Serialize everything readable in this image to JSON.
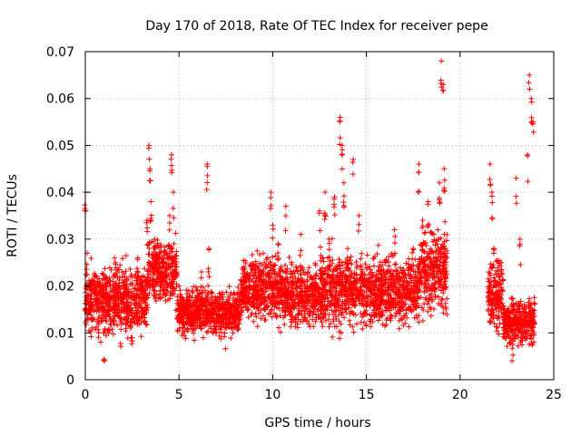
{
  "chart_data": {
    "type": "scatter",
    "title": "Day 170 of 2018, Rate Of TEC Index for receiver pepe",
    "xlabel": "GPS time / hours",
    "ylabel": "ROTI / TECUs",
    "xlim": [
      0,
      25
    ],
    "ylim": [
      0,
      0.07
    ],
    "x_ticks": [
      0,
      5,
      10,
      15,
      20,
      25
    ],
    "y_ticks": [
      0,
      0.01,
      0.02,
      0.03,
      0.04,
      0.05,
      0.06,
      0.07
    ],
    "x_tick_labels": [
      "0",
      "5",
      "10",
      "15",
      "20",
      "25"
    ],
    "y_tick_labels": [
      "0",
      "0.01",
      "0.02",
      "0.03",
      "0.04",
      "0.05",
      "0.06",
      "0.07"
    ],
    "grid": true,
    "marker": "+",
    "color": "#ff0000",
    "series": [
      {
        "name": "ROTI",
        "x": [
          0.0,
          0.1,
          0.2,
          0.3,
          0.5,
          0.7,
          1.0,
          1.3,
          1.6,
          1.9,
          2.2,
          2.5,
          2.8,
          3.1,
          3.3,
          3.4,
          3.45,
          3.5,
          3.7,
          4.0,
          4.3,
          4.5,
          4.6,
          4.7,
          5.0,
          5.4,
          5.8,
          6.2,
          6.5,
          6.6,
          7.0,
          7.5,
          8.0,
          8.5,
          9.0,
          9.5,
          9.9,
          10.0,
          10.3,
          10.7,
          11.0,
          11.5,
          12.0,
          12.5,
          12.8,
          13.0,
          13.3,
          13.6,
          13.7,
          13.8,
          14.0,
          14.3,
          14.6,
          14.9,
          15.0,
          15.3,
          15.7,
          16.0,
          16.5,
          17.0,
          17.5,
          17.8,
          18.0,
          18.3,
          18.6,
          18.9,
          19.0,
          19.1,
          19.15,
          19.2,
          21.6,
          21.7,
          21.8,
          22.0,
          22.2,
          22.5,
          22.8,
          23.0,
          23.2,
          23.4,
          23.6,
          23.7,
          23.8,
          23.9
        ],
        "y": [
          0.04,
          0.027,
          0.02,
          0.015,
          0.022,
          0.013,
          0.01,
          0.018,
          0.025,
          0.012,
          0.015,
          0.009,
          0.026,
          0.02,
          0.034,
          0.05,
          0.045,
          0.038,
          0.03,
          0.02,
          0.025,
          0.035,
          0.048,
          0.04,
          0.02,
          0.016,
          0.013,
          0.023,
          0.046,
          0.028,
          0.014,
          0.012,
          0.017,
          0.023,
          0.021,
          0.027,
          0.04,
          0.033,
          0.029,
          0.037,
          0.025,
          0.031,
          0.022,
          0.036,
          0.04,
          0.03,
          0.039,
          0.056,
          0.05,
          0.042,
          0.028,
          0.047,
          0.035,
          0.02,
          0.016,
          0.022,
          0.018,
          0.025,
          0.032,
          0.021,
          0.028,
          0.046,
          0.034,
          0.038,
          0.031,
          0.042,
          0.068,
          0.063,
          0.045,
          0.028,
          0.046,
          0.04,
          0.028,
          0.017,
          0.025,
          0.013,
          0.01,
          0.043,
          0.03,
          0.015,
          0.048,
          0.065,
          0.06,
          0.055
        ]
      }
    ],
    "band_summary": [
      {
        "from": 0,
        "to": 0.3,
        "lo": 0.01,
        "hi": 0.024
      },
      {
        "from": 0.3,
        "to": 3.3,
        "lo": 0.008,
        "hi": 0.026
      },
      {
        "from": 3.3,
        "to": 4.9,
        "lo": 0.014,
        "hi": 0.032
      },
      {
        "from": 4.9,
        "to": 8.3,
        "lo": 0.009,
        "hi": 0.02
      },
      {
        "from": 8.3,
        "to": 10.5,
        "lo": 0.011,
        "hi": 0.028
      },
      {
        "from": 10.5,
        "to": 12.5,
        "lo": 0.01,
        "hi": 0.026
      },
      {
        "from": 12.5,
        "to": 17.8,
        "lo": 0.009,
        "hi": 0.029
      },
      {
        "from": 17.8,
        "to": 19.3,
        "lo": 0.012,
        "hi": 0.035
      },
      {
        "from": 21.5,
        "to": 22.3,
        "lo": 0.009,
        "hi": 0.027
      },
      {
        "from": 22.3,
        "to": 24.0,
        "lo": 0.007,
        "hi": 0.018
      }
    ]
  }
}
